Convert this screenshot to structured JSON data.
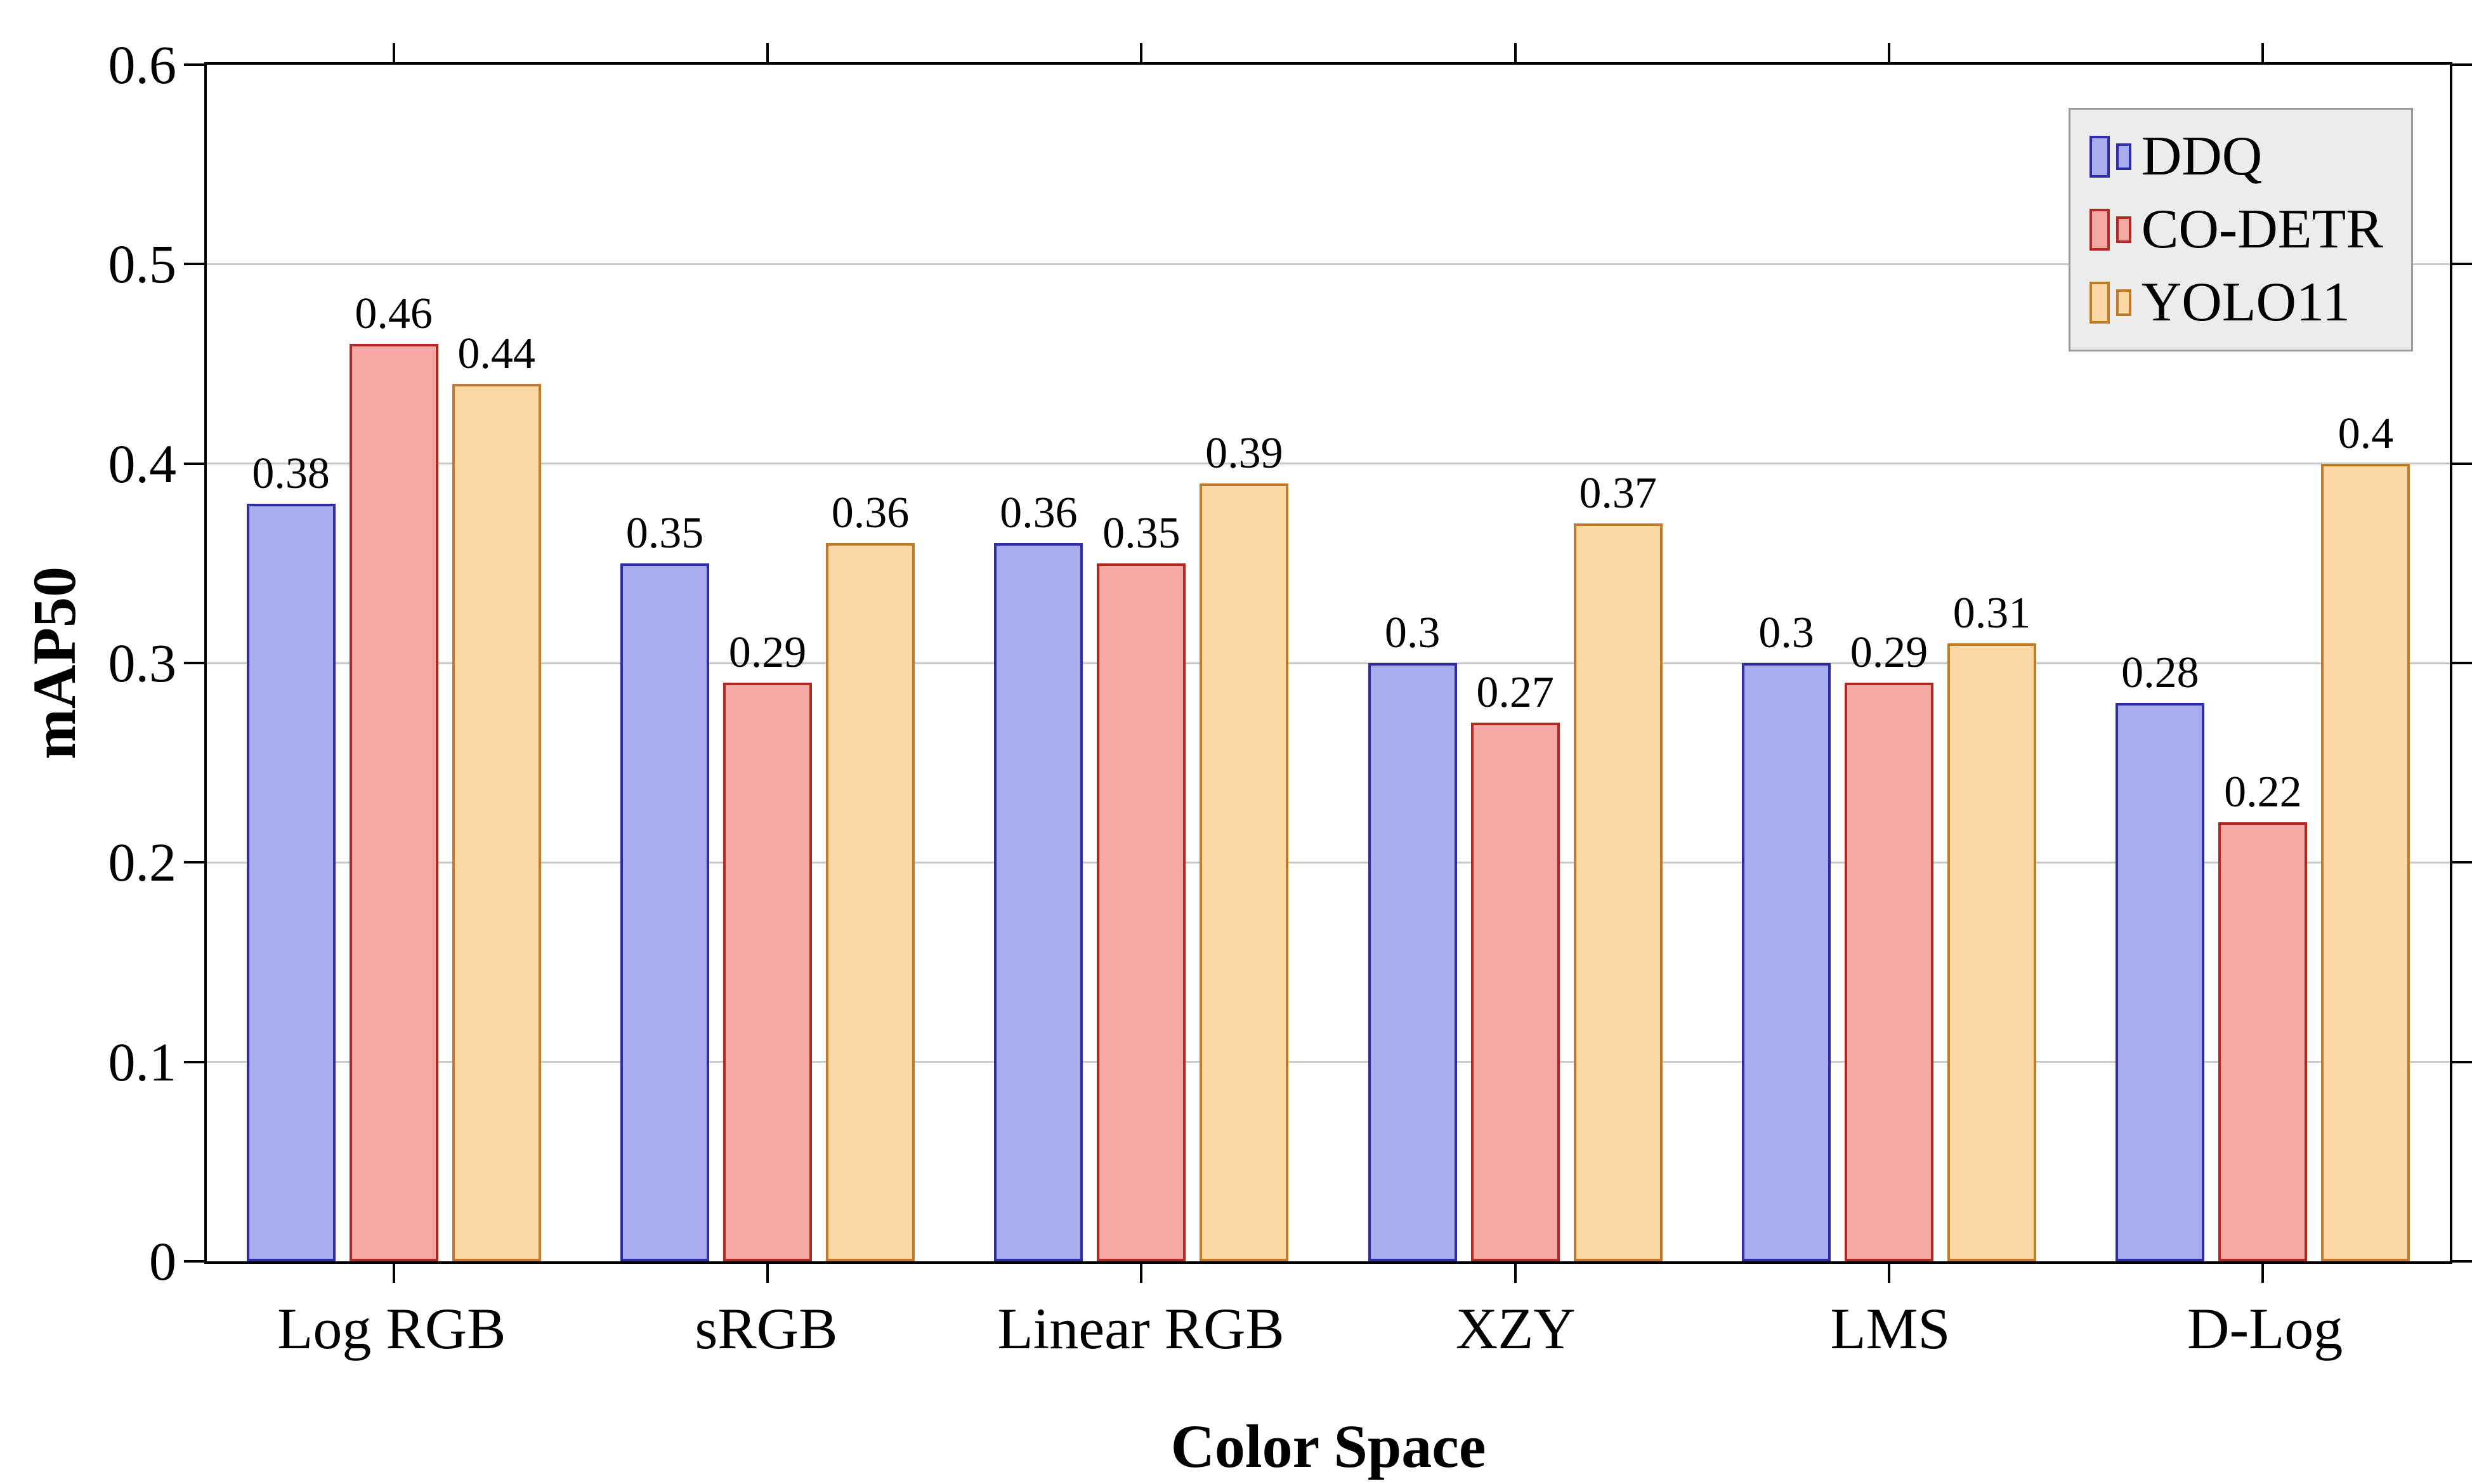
{
  "chart_data": {
    "type": "bar",
    "title": "",
    "xlabel": "Color Space",
    "ylabel": "mAP50",
    "categories": [
      "Log RGB",
      "sRGB",
      "Linear RGB",
      "XZY",
      "LMS",
      "D-Log"
    ],
    "series": [
      {
        "name": "DDQ",
        "fill": "#a9adf0",
        "edge": "#2d2da8",
        "values": [
          0.38,
          0.35,
          0.36,
          0.3,
          0.3,
          0.28
        ]
      },
      {
        "name": "CO-DETR",
        "fill": "#f5a8a4",
        "edge": "#b02a23",
        "values": [
          0.46,
          0.29,
          0.35,
          0.27,
          0.29,
          0.22
        ]
      },
      {
        "name": "YOLO11",
        "fill": "#fbd8a5",
        "edge": "#c07a28",
        "values": [
          0.44,
          0.36,
          0.39,
          0.37,
          0.31,
          0.4
        ]
      }
    ],
    "ylim": [
      0,
      0.6
    ],
    "yticks": [
      "0",
      "0.1",
      "0.2",
      "0.3",
      "0.4",
      "0.5",
      "0.6"
    ],
    "grid": "horizontal",
    "legend_position": "top-right",
    "colors": {
      "axis": "#000000",
      "gridline": "#c9c9c9",
      "legend_bg": "#ececec",
      "background": "#ffffff"
    }
  }
}
